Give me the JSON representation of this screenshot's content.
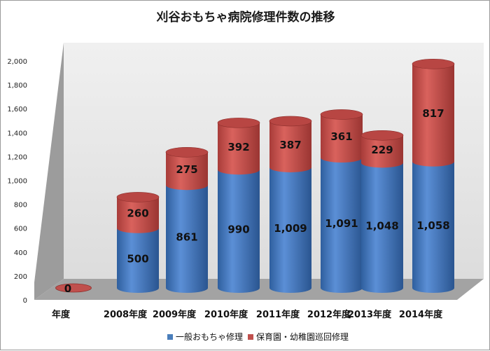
{
  "chart_data": {
    "type": "bar",
    "stacked": true,
    "style": "3d-cylinder",
    "title": "刈谷おもちゃ病院修理件数の推移",
    "categories": [
      "年度",
      "2008年度",
      "2009年度",
      "2010年度",
      "2011年度",
      "2012年度",
      "2013年度",
      "2014年度"
    ],
    "series": [
      {
        "name": "一般おもちゃ修理",
        "color": "#4a7ebb",
        "values": [
          0,
          500,
          861,
          990,
          1009,
          1091,
          1048,
          1058
        ]
      },
      {
        "name": "保育園・幼稚園巡回修理",
        "color": "#c0504d",
        "values": [
          0,
          260,
          275,
          392,
          387,
          361,
          229,
          817
        ]
      }
    ],
    "data_labels": [
      [
        "0",
        "500",
        "861",
        "990",
        "1,009",
        "1,091",
        "1,048",
        "1,058"
      ],
      [
        "",
        "260",
        "275",
        "392",
        "387",
        "361",
        "229",
        "817"
      ]
    ],
    "ylim": [
      0,
      2000
    ],
    "yticks": [
      0,
      200,
      400,
      600,
      800,
      1000,
      1200,
      1400,
      1600,
      1800,
      2000
    ],
    "ytick_labels": [
      "0",
      "200",
      "400",
      "600",
      "800",
      "1,000",
      "1,200",
      "1,400",
      "1,600",
      "1,800",
      "2,000"
    ],
    "grid": false,
    "legend_position": "bottom"
  }
}
